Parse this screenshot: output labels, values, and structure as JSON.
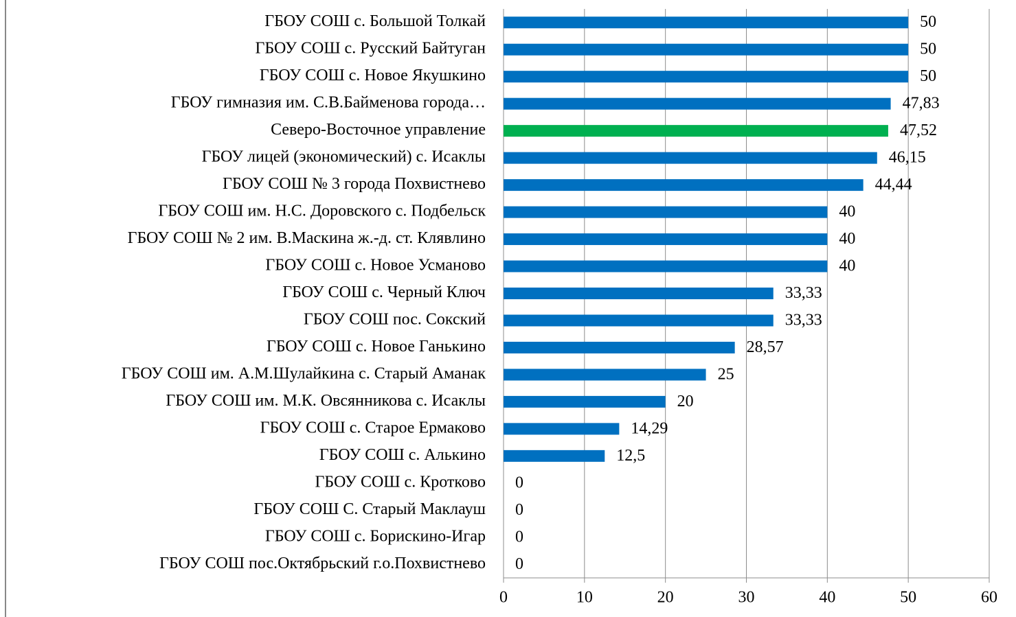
{
  "chart_data": {
    "type": "bar",
    "orientation": "horizontal",
    "categories": [
      "ГБОУ СОШ с. Большой Толкай",
      "ГБОУ СОШ с. Русский Байтуган",
      "ГБОУ СОШ с. Новое Якушкино",
      "ГБОУ гимназия им. С.В.Байменова города…",
      "Северо-Восточное управление",
      "ГБОУ лицей (экономический) с. Исаклы",
      "ГБОУ СОШ № 3 города Похвистнево",
      "ГБОУ СОШ им. Н.С. Доровского с. Подбельск",
      "ГБОУ СОШ № 2 им. В.Маскина ж.-д. ст. Клявлино",
      "ГБОУ СОШ с. Новое Усманово",
      "ГБОУ СОШ с. Черный Ключ",
      "ГБОУ СОШ пос. Сокский",
      "ГБОУ СОШ с. Новое Ганькино",
      "ГБОУ СОШ им. А.М.Шулайкина  с. Старый Аманак",
      "ГБОУ СОШ им. М.К. Овсянникова с. Исаклы",
      "ГБОУ СОШ с. Старое Ермаково",
      "ГБОУ СОШ с. Алькино",
      "ГБОУ СОШ с. Кротково",
      "ГБОУ СОШ С. Старый Маклауш",
      "ГБОУ СОШ с. Борискино-Игар",
      "ГБОУ СОШ пос.Октябрьский г.о.Похвистнево"
    ],
    "values": [
      50,
      50,
      50,
      47.83,
      47.52,
      46.15,
      44.44,
      40,
      40,
      40,
      33.33,
      33.33,
      28.57,
      25,
      20,
      14.29,
      12.5,
      0,
      0,
      0,
      0
    ],
    "value_labels": [
      "50",
      "50",
      "50",
      "47,83",
      "47,52",
      "46,15",
      "44,44",
      "40",
      "40",
      "40",
      "33,33",
      "33,33",
      "28,57",
      "25",
      "20",
      "14,29",
      "12,5",
      "0",
      "0",
      "0",
      "0"
    ],
    "colors": [
      "#0070c0",
      "#0070c0",
      "#0070c0",
      "#0070c0",
      "#00b050",
      "#0070c0",
      "#0070c0",
      "#0070c0",
      "#0070c0",
      "#0070c0",
      "#0070c0",
      "#0070c0",
      "#0070c0",
      "#0070c0",
      "#0070c0",
      "#0070c0",
      "#0070c0",
      "#0070c0",
      "#0070c0",
      "#0070c0",
      "#0070c0"
    ],
    "xlim": [
      0,
      60
    ],
    "xticks": [
      0,
      10,
      20,
      30,
      40,
      50,
      60
    ],
    "grid": true
  }
}
